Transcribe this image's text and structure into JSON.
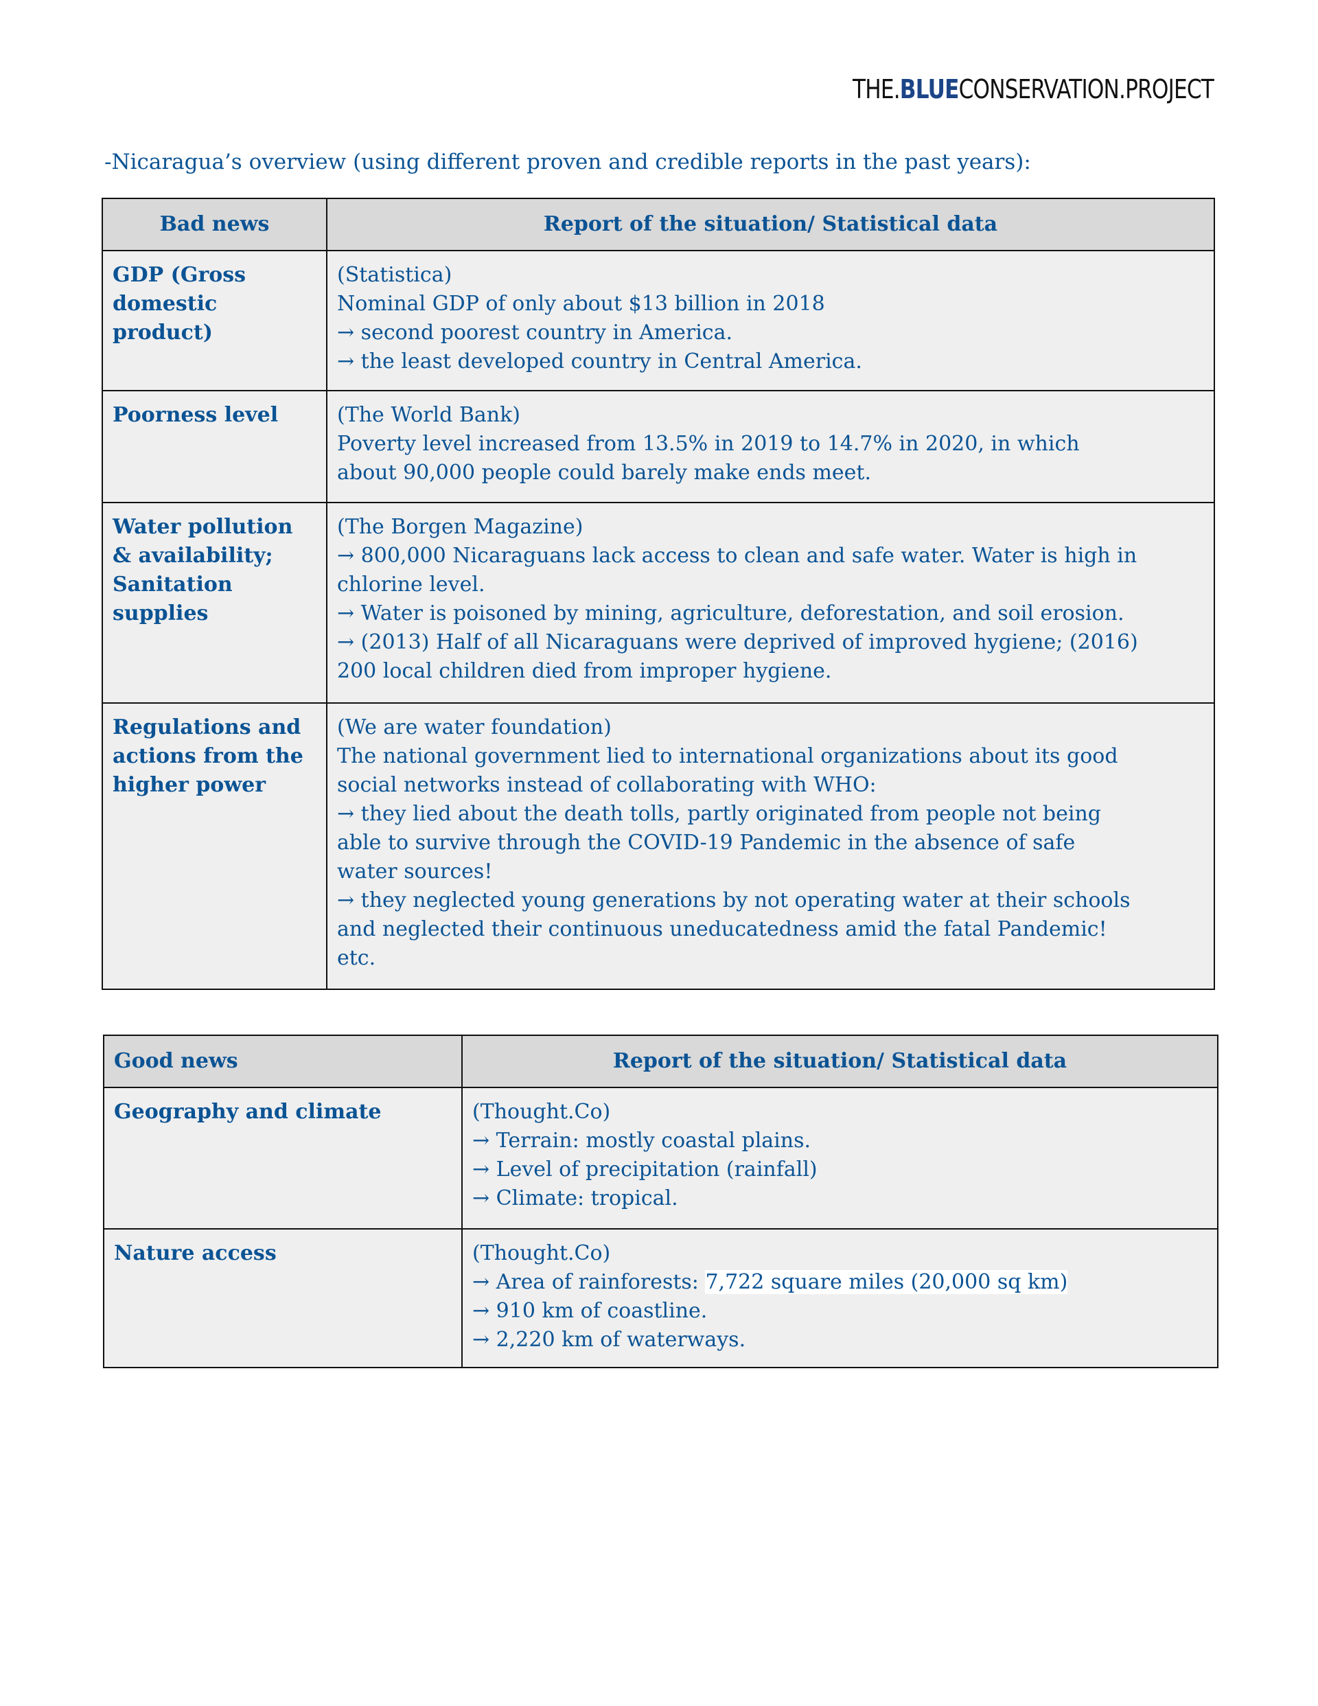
{
  "logo": {
    "part1": "THE.",
    "part2": "BLUE",
    "part3": "CONSERVATION.PROJECT"
  },
  "intro": "-Nicaragua’s overview (using different proven and credible reports in the past years):",
  "bad": {
    "headers": [
      "Bad news",
      "Report of the situation/ Statistical data"
    ],
    "rows": [
      {
        "label": "GDP (Gross domestic product)",
        "lines": [
          "(Statistica)",
          "Nominal GDP of only about $13 billion in 2018",
          "→ second poorest country in America.",
          "→ the least developed country in Central America."
        ]
      },
      {
        "label": "Poorness level",
        "lines": [
          "(The World Bank)",
          "Poverty level increased from 13.5% in 2019 to 14.7% in 2020, in which",
          "about 90,000 people could barely make ends meet."
        ]
      },
      {
        "label": "Water pollution & availability; Sanitation supplies",
        "lines": [
          "(The Borgen Magazine)",
          "→ 800,000 Nicaraguans lack access to clean and safe water. Water is high in",
          "chlorine level.",
          "→ Water is poisoned by mining, agriculture, deforestation, and soil erosion.",
          "→ (2013) Half of all Nicaraguans were deprived of improved hygiene; (2016)",
          "200 local children died from improper hygiene."
        ]
      },
      {
        "label": "Regulations and actions from the higher power",
        "lines": [
          "(We are water foundation)",
          "The national government lied to international organizations about its good",
          "social networks instead of collaborating with WHO:",
          "→ they lied about the death tolls, partly originated from people not being",
          "able to survive through the COVID-19 Pandemic in the absence of safe",
          "water sources!",
          "→ they neglected young generations by not operating water at their schools",
          "and neglected their continuous uneducatedness amid the fatal Pandemic!",
          "etc."
        ]
      }
    ]
  },
  "good": {
    "headers": [
      "Good news",
      "Report of the situation/ Statistical data"
    ],
    "rows": [
      {
        "label": "Geography and climate",
        "lines": [
          "(Thought.Co)",
          "→ Terrain: mostly coastal plains.",
          "→ Level of precipitation (rainfall)",
          "→ Climate: tropical."
        ]
      },
      {
        "label": "Nature access",
        "lines": [
          "(Thought.Co)",
          "→ Area of rainforests: ",
          "→ 910 km of coastline.",
          "→ 2,220 km of waterways."
        ],
        "highlight": "7,722 square miles (20,000 sq km)"
      }
    ]
  }
}
